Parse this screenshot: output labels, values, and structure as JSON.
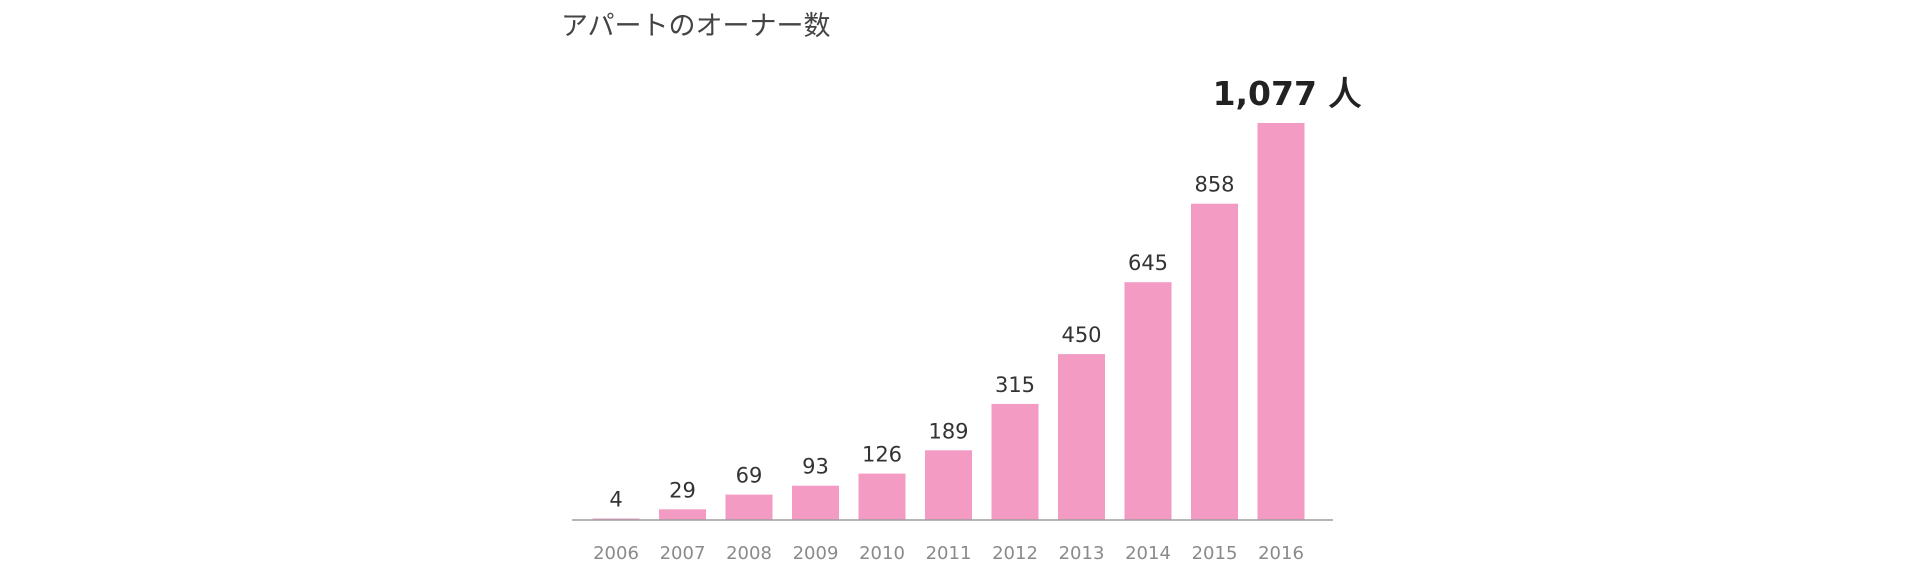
{
  "chart_data": {
    "type": "bar",
    "title": "アパートのオーナー数",
    "categories": [
      "2006",
      "2007",
      "2008",
      "2009",
      "2010",
      "2011",
      "2012",
      "2013",
      "2014",
      "2015",
      "2016"
    ],
    "values": [
      4,
      29,
      69,
      93,
      126,
      189,
      315,
      450,
      645,
      858,
      1077
    ],
    "data_labels": [
      "4",
      "29",
      "69",
      "93",
      "126",
      "189",
      "315",
      "450",
      "645",
      "858",
      "1,077 人"
    ],
    "ylim": [
      0,
      1077
    ],
    "grid": false,
    "bar_color": "#f39bc3",
    "axis_color": "#9e9e9e"
  }
}
